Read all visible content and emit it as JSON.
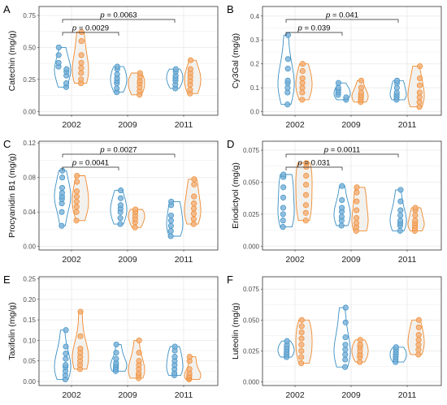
{
  "colors": {
    "series_a": "#3a8fc4",
    "series_b": "#ef8a2e",
    "point_a": "#7fb4d9",
    "point_b": "#f3b27a",
    "fill_b": "#f3f1ee",
    "grid": "#ebebeb",
    "frame": "#333333"
  },
  "chart_data": [
    {
      "type": "violin",
      "panel": "A",
      "ylabel": "Catechin (mg/g)",
      "categories": [
        "2002",
        "2009",
        "2011"
      ],
      "yticks": [
        0.0,
        0.25,
        0.5,
        0.75
      ],
      "ytick_labels": [
        "0.00",
        "0.25",
        "0.50",
        "0.75"
      ],
      "ylim": [
        -0.03,
        0.82
      ],
      "series": [
        {
          "values": [
            [
              0.19,
              0.22,
              0.28,
              0.31,
              0.33,
              0.35,
              0.38,
              0.44,
              0.5
            ],
            [
              0.15,
              0.18,
              0.22,
              0.24,
              0.26,
              0.29,
              0.33,
              0.35
            ],
            [
              0.18,
              0.21,
              0.24,
              0.26,
              0.28,
              0.31,
              0.33
            ]
          ]
        },
        {
          "values": [
            [
              0.22,
              0.25,
              0.3,
              0.34,
              0.38,
              0.44,
              0.55,
              0.62
            ],
            [
              0.13,
              0.16,
              0.19,
              0.22,
              0.24,
              0.27,
              0.3
            ],
            [
              0.14,
              0.17,
              0.21,
              0.24,
              0.27,
              0.3,
              0.33,
              0.4
            ]
          ]
        }
      ],
      "brackets": [
        {
          "from": 0,
          "to": 1,
          "label": "= 0.0029"
        },
        {
          "from": 0,
          "to": 2,
          "label": "= 0.0063"
        }
      ]
    },
    {
      "type": "violin",
      "panel": "B",
      "ylabel": "Cy3Gal (mg/g)",
      "categories": [
        "2002",
        "2009",
        "2011"
      ],
      "yticks": [
        0.0,
        0.1,
        0.2,
        0.3,
        0.4
      ],
      "ytick_labels": [
        "0.0",
        "0.1",
        "0.2",
        "0.3",
        "0.4"
      ],
      "ylim": [
        -0.015,
        0.44
      ],
      "series": [
        {
          "values": [
            [
              0.03,
              0.08,
              0.1,
              0.12,
              0.13,
              0.18,
              0.22,
              0.32
            ],
            [
              0.05,
              0.06,
              0.07,
              0.08,
              0.09,
              0.1,
              0.12
            ],
            [
              0.05,
              0.06,
              0.07,
              0.08,
              0.1,
              0.12,
              0.13
            ]
          ]
        },
        {
          "values": [
            [
              0.05,
              0.08,
              0.1,
              0.12,
              0.14,
              0.17,
              0.2
            ],
            [
              0.04,
              0.05,
              0.06,
              0.07,
              0.08,
              0.1,
              0.13
            ],
            [
              0.02,
              0.04,
              0.06,
              0.08,
              0.11,
              0.14,
              0.19
            ]
          ]
        }
      ],
      "brackets": [
        {
          "from": 0,
          "to": 1,
          "label": "= 0.039"
        },
        {
          "from": 0,
          "to": 2,
          "label": "= 0.041"
        }
      ]
    },
    {
      "type": "violin",
      "panel": "C",
      "ylabel": "Procyanidin B1 (mg/g)",
      "categories": [
        "2002",
        "2009",
        "2011"
      ],
      "yticks": [
        0.0,
        0.04,
        0.08,
        0.12
      ],
      "ytick_labels": [
        "0.00",
        "0.04",
        "0.08",
        "0.12"
      ],
      "ylim": [
        -0.004,
        0.122
      ],
      "series": [
        {
          "values": [
            [
              0.024,
              0.04,
              0.05,
              0.055,
              0.058,
              0.062,
              0.068,
              0.08,
              0.088
            ],
            [
              0.026,
              0.033,
              0.04,
              0.044,
              0.048,
              0.056,
              0.065
            ],
            [
              0.012,
              0.018,
              0.024,
              0.03,
              0.036,
              0.048,
              0.052
            ]
          ]
        },
        {
          "values": [
            [
              0.03,
              0.04,
              0.046,
              0.052,
              0.058,
              0.064,
              0.075,
              0.082
            ],
            [
              0.022,
              0.028,
              0.032,
              0.036,
              0.04,
              0.043
            ],
            [
              0.026,
              0.032,
              0.038,
              0.044,
              0.05,
              0.058,
              0.072,
              0.078
            ]
          ]
        }
      ],
      "brackets": [
        {
          "from": 0,
          "to": 1,
          "label": "= 0.0041"
        },
        {
          "from": 0,
          "to": 2,
          "label": "= 0.0027"
        }
      ]
    },
    {
      "type": "violin",
      "panel": "D",
      "ylabel": "Eriodictyol (mg/g)",
      "categories": [
        "2002",
        "2009",
        "2011"
      ],
      "yticks": [
        0.0,
        0.025,
        0.05,
        0.075
      ],
      "ytick_labels": [
        "0.000",
        "0.025",
        "0.050",
        "0.075"
      ],
      "ylim": [
        -0.003,
        0.082
      ],
      "series": [
        {
          "values": [
            [
              0.015,
              0.02,
              0.025,
              0.03,
              0.038,
              0.046,
              0.054,
              0.056
            ],
            [
              0.016,
              0.02,
              0.023,
              0.027,
              0.03,
              0.036,
              0.047
            ],
            [
              0.012,
              0.016,
              0.018,
              0.02,
              0.024,
              0.028,
              0.035,
              0.044
            ]
          ]
        },
        {
          "values": [
            [
              0.02,
              0.026,
              0.032,
              0.04,
              0.048,
              0.055,
              0.062,
              0.065
            ],
            [
              0.012,
              0.015,
              0.018,
              0.022,
              0.028,
              0.035,
              0.042,
              0.046
            ],
            [
              0.012,
              0.014,
              0.016,
              0.018,
              0.02,
              0.024,
              0.028,
              0.03
            ]
          ]
        }
      ],
      "brackets": [
        {
          "from": 0,
          "to": 1,
          "label": "= 0.031"
        },
        {
          "from": 0,
          "to": 2,
          "label": "= 0.0011"
        }
      ]
    },
    {
      "type": "violin",
      "panel": "E",
      "ylabel": "Taxifolin (mg/g)",
      "categories": [
        "2002",
        "2009",
        "2011"
      ],
      "yticks": [
        0.0,
        0.05,
        0.1,
        0.15,
        0.2,
        0.25
      ],
      "ytick_labels": [
        "0.00",
        "0.05",
        "0.10",
        "0.15",
        "0.20",
        "0.25"
      ],
      "ylim": [
        -0.01,
        0.255
      ],
      "series": [
        {
          "values": [
            [
              0.005,
              0.015,
              0.025,
              0.035,
              0.04,
              0.055,
              0.068,
              0.085,
              0.125
            ],
            [
              0.025,
              0.03,
              0.035,
              0.04,
              0.045,
              0.055,
              0.07,
              0.09
            ],
            [
              0.015,
              0.02,
              0.03,
              0.04,
              0.05,
              0.06,
              0.075,
              0.085
            ]
          ]
        },
        {
          "values": [
            [
              0.03,
              0.04,
              0.05,
              0.06,
              0.07,
              0.08,
              0.11,
              0.17
            ],
            [
              0.008,
              0.015,
              0.02,
              0.03,
              0.04,
              0.05,
              0.07,
              0.1
            ],
            [
              0.005,
              0.008,
              0.012,
              0.015,
              0.02,
              0.03,
              0.05,
              0.06
            ]
          ]
        }
      ],
      "brackets": []
    },
    {
      "type": "violin",
      "panel": "F",
      "ylabel": "Luteolin (mg/g)",
      "categories": [
        "2002",
        "2009",
        "2011"
      ],
      "yticks": [
        0.0,
        0.025,
        0.05,
        0.075
      ],
      "ytick_labels": [
        "0.000",
        "0.025",
        "0.050",
        "0.075"
      ],
      "ylim": [
        -0.003,
        0.085
      ],
      "series": [
        {
          "values": [
            [
              0.02,
              0.022,
              0.024,
              0.026,
              0.028,
              0.03,
              0.033
            ],
            [
              0.012,
              0.018,
              0.022,
              0.026,
              0.03,
              0.036,
              0.048,
              0.06
            ],
            [
              0.016,
              0.018,
              0.02,
              0.022,
              0.024,
              0.026,
              0.028
            ]
          ]
        },
        {
          "values": [
            [
              0.015,
              0.02,
              0.025,
              0.03,
              0.035,
              0.04,
              0.045,
              0.05
            ],
            [
              0.016,
              0.02,
              0.022,
              0.025,
              0.028,
              0.03,
              0.034
            ],
            [
              0.022,
              0.026,
              0.03,
              0.034,
              0.038,
              0.044,
              0.05
            ]
          ]
        }
      ],
      "brackets": []
    }
  ]
}
